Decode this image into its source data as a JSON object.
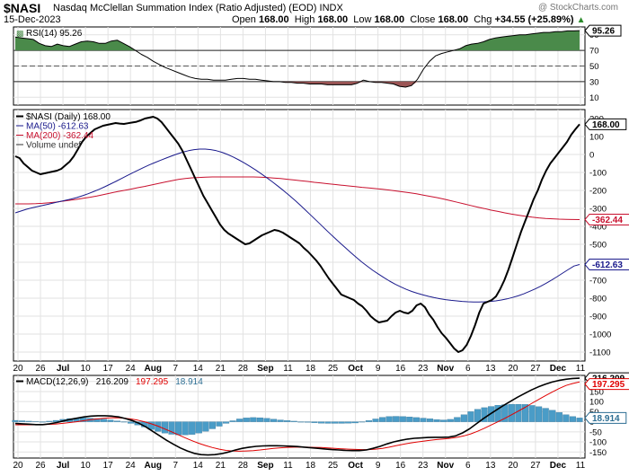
{
  "header": {
    "symbol": "$NASI",
    "title": "Nasdaq McClellan Summation Index (Ratio Adjusted) (EOD)",
    "exchange": "INDX",
    "watermark": "@ StockCharts.com",
    "date": "15-Dec-2023",
    "open_label": "Open",
    "open": "168.00",
    "high_label": "High",
    "high": "168.00",
    "low_label": "Low",
    "low": "168.00",
    "close_label": "Close",
    "close": "168.00",
    "chg_label": "Chg",
    "chg": "+34.55 (+25.89%)",
    "chg_arrow": "▲"
  },
  "colors": {
    "price": "#000000",
    "ma50": "#1a1a8c",
    "ma200": "#c8102e",
    "signal": "#e00000",
    "hist": "#4a9cc7",
    "rsi_up": "#4a8a4a",
    "rsi_down": "#9b5555",
    "tag_ma50": "#1a1a8c",
    "tag_ma200": "#c8102e"
  },
  "chart_data": [
    {
      "type": "line",
      "panel": "rsi",
      "legend": [
        "RSI(14) 95.26"
      ],
      "last_value_tag": "95.26",
      "ylim": [
        0,
        100
      ],
      "ticks": [
        10,
        30,
        50,
        70,
        90
      ],
      "levels": [
        30,
        50,
        70
      ],
      "x_labels": [
        "20",
        "26",
        "Jul",
        "10",
        "17",
        "24",
        "Aug",
        "7",
        "14",
        "21",
        "28",
        "Sep",
        "11",
        "18",
        "25",
        "Oct",
        "9",
        "16",
        "23",
        "Nov",
        "6",
        "13",
        "20",
        "27",
        "Dec",
        "11"
      ],
      "series": [
        {
          "name": "RSI(14)",
          "values": [
            87,
            86,
            85,
            84,
            79,
            76,
            75,
            78,
            76,
            75,
            78,
            81,
            82,
            81,
            79,
            79,
            82,
            83,
            79,
            75,
            70,
            65,
            61,
            56,
            52,
            48,
            45,
            42,
            39,
            36,
            34,
            33,
            33,
            32,
            32,
            32,
            33,
            34,
            34,
            33,
            33,
            32,
            31,
            30,
            30,
            29,
            29,
            28,
            28,
            27,
            27,
            27,
            26,
            26,
            26,
            26,
            26,
            28,
            32,
            30,
            29,
            29,
            28,
            27,
            24,
            23,
            25,
            33,
            46,
            56,
            63,
            66,
            68,
            70,
            72,
            76,
            78,
            79,
            81,
            84,
            86,
            87,
            88,
            89,
            90,
            90,
            91,
            92,
            93,
            93,
            94,
            94,
            95,
            95,
            95.26
          ]
        }
      ]
    },
    {
      "type": "line",
      "panel": "price",
      "legend": [
        "$NASI (Daily) 168.00",
        "MA(50) -612.63",
        "MA(200) -362.44",
        "Volume undef"
      ],
      "ylim": [
        -1150,
        250
      ],
      "ticks": [
        200,
        100,
        0,
        -100,
        -200,
        -300,
        -400,
        -500,
        -600,
        -700,
        -800,
        -900,
        -1000,
        -1100
      ],
      "x_labels": [
        "20",
        "26",
        "Jul",
        "10",
        "17",
        "24",
        "Aug",
        "7",
        "14",
        "21",
        "28",
        "Sep",
        "11",
        "18",
        "25",
        "Oct",
        "9",
        "16",
        "23",
        "Nov",
        "6",
        "13",
        "20",
        "27",
        "Dec",
        "11"
      ],
      "value_tags": [
        "168.00",
        "-362.44",
        "-612.63"
      ],
      "series": [
        {
          "name": "$NASI",
          "values": [
            -10,
            -20,
            -50,
            -70,
            -90,
            -100,
            -110,
            -105,
            -100,
            -95,
            -90,
            -80,
            -60,
            -40,
            -10,
            30,
            70,
            100,
            120,
            140,
            150,
            160,
            165,
            170,
            175,
            172,
            170,
            174,
            178,
            182,
            190,
            200,
            205,
            210,
            200,
            180,
            150,
            120,
            90,
            60,
            20,
            -30,
            -80,
            -130,
            -180,
            -230,
            -270,
            -310,
            -350,
            -390,
            -420,
            -440,
            -455,
            -470,
            -485,
            -500,
            -495,
            -480,
            -465,
            -450,
            -440,
            -430,
            -420,
            -425,
            -435,
            -450,
            -465,
            -480,
            -495,
            -520,
            -540,
            -565,
            -590,
            -620,
            -655,
            -690,
            -720,
            -750,
            -780,
            -790,
            -800,
            -810,
            -830,
            -845,
            -870,
            -900,
            -920,
            -935,
            -930,
            -925,
            -900,
            -880,
            -870,
            -880,
            -885,
            -870,
            -840,
            -830,
            -850,
            -890,
            -920,
            -960,
            -995,
            -1020,
            -1050,
            -1080,
            -1100,
            -1090,
            -1060,
            -1010,
            -950,
            -880,
            -830,
            -820,
            -810,
            -790,
            -750,
            -700,
            -640,
            -570,
            -500,
            -430,
            -370,
            -310,
            -250,
            -200,
            -140,
            -90,
            -50,
            -20,
            10,
            40,
            70,
            110,
            140,
            168
          ]
        },
        {
          "name": "MA(50)",
          "values": [
            -325,
            -315,
            -305,
            -297,
            -290,
            -283,
            -276,
            -269,
            -262,
            -255,
            -248,
            -240,
            -230,
            -219,
            -207,
            -194,
            -180,
            -165,
            -150,
            -134,
            -118,
            -102,
            -87,
            -72,
            -58,
            -45,
            -32,
            -20,
            -8,
            3,
            13,
            21,
            27,
            30,
            30,
            27,
            21,
            12,
            0,
            -14,
            -30,
            -47,
            -66,
            -86,
            -107,
            -129,
            -152,
            -176,
            -201,
            -227,
            -254,
            -282,
            -311,
            -341,
            -371,
            -401,
            -431,
            -460,
            -489,
            -517,
            -545,
            -572,
            -598,
            -622,
            -645,
            -666,
            -686,
            -705,
            -722,
            -737,
            -751,
            -763,
            -773,
            -782,
            -790,
            -797,
            -803,
            -808,
            -812,
            -815,
            -818,
            -820,
            -821,
            -821,
            -820,
            -818,
            -815,
            -810,
            -804,
            -796,
            -787,
            -776,
            -763,
            -749,
            -734,
            -717,
            -699,
            -680,
            -660,
            -640,
            -621,
            -612.63
          ]
        },
        {
          "name": "MA(200)",
          "values": [
            -275,
            -275,
            -275,
            -274,
            -272,
            -269,
            -265,
            -260,
            -255,
            -250,
            -244,
            -238,
            -231,
            -223,
            -215,
            -207,
            -200,
            -193,
            -185,
            -178,
            -170,
            -162,
            -154,
            -146,
            -139,
            -134,
            -130,
            -128,
            -126,
            -125,
            -125,
            -125,
            -125,
            -125,
            -125,
            -125,
            -126,
            -128,
            -131,
            -134,
            -138,
            -142,
            -146,
            -150,
            -155,
            -159,
            -163,
            -167,
            -171,
            -175,
            -179,
            -183,
            -186,
            -190,
            -194,
            -198,
            -203,
            -208,
            -213,
            -219,
            -226,
            -233,
            -240,
            -248,
            -257,
            -266,
            -275,
            -284,
            -293,
            -301,
            -310,
            -317,
            -325,
            -332,
            -338,
            -344,
            -349,
            -353,
            -356,
            -358,
            -360,
            -361,
            -362,
            -362.44
          ]
        }
      ]
    },
    {
      "type": "line",
      "panel": "macd",
      "legend": [
        "MACD(12,26,9)",
        "216.209",
        "197.295",
        "18.914"
      ],
      "ylim": [
        -180,
        230
      ],
      "ticks": [
        200,
        150,
        100,
        50,
        0,
        -50,
        -100,
        -150
      ],
      "value_tags": [
        "216.209",
        "197.295",
        "18.914"
      ],
      "x_labels": [
        "20",
        "26",
        "Jul",
        "10",
        "17",
        "24",
        "Aug",
        "7",
        "14",
        "21",
        "28",
        "Sep",
        "11",
        "18",
        "25",
        "Oct",
        "9",
        "16",
        "23",
        "Nov",
        "6",
        "13",
        "20",
        "27",
        "Dec",
        "11"
      ],
      "series": [
        {
          "name": "MACD",
          "values": [
            -8,
            -10,
            -12,
            -14,
            -14,
            -10,
            -4,
            4,
            12,
            18,
            24,
            28,
            30,
            30,
            28,
            24,
            16,
            6,
            -8,
            -26,
            -48,
            -70,
            -92,
            -112,
            -130,
            -145,
            -157,
            -163,
            -165,
            -163,
            -158,
            -150,
            -140,
            -132,
            -126,
            -122,
            -120,
            -119,
            -119,
            -120,
            -121,
            -123,
            -126,
            -129,
            -132,
            -135,
            -138,
            -140,
            -142,
            -143,
            -143,
            -140,
            -132,
            -122,
            -110,
            -100,
            -92,
            -86,
            -82,
            -80,
            -78,
            -77,
            -77,
            -76,
            -70,
            -55,
            -35,
            -10,
            15,
            38,
            60,
            82,
            102,
            122,
            140,
            158,
            173,
            186,
            197,
            205,
            211,
            215,
            216.209
          ]
        },
        {
          "name": "Signal",
          "values": [
            -15,
            -15,
            -15,
            -15,
            -14,
            -13,
            -11,
            -8,
            -4,
            0,
            5,
            10,
            14,
            17,
            19,
            20,
            18,
            14,
            8,
            0,
            -10,
            -22,
            -36,
            -50,
            -65,
            -80,
            -94,
            -107,
            -118,
            -128,
            -136,
            -142,
            -145,
            -146,
            -145,
            -143,
            -140,
            -136,
            -132,
            -129,
            -127,
            -126,
            -126,
            -126,
            -127,
            -128,
            -130,
            -132,
            -134,
            -136,
            -137,
            -138,
            -138,
            -136,
            -132,
            -126,
            -119,
            -112,
            -106,
            -101,
            -96,
            -92,
            -88,
            -85,
            -82,
            -77,
            -70,
            -60,
            -47,
            -32,
            -16,
            0,
            17,
            35,
            53,
            72,
            92,
            111,
            130,
            148,
            165,
            180,
            190,
            197.295
          ]
        },
        {
          "name": "Histogram",
          "values": [
            7,
            5,
            3,
            1,
            0,
            3,
            7,
            12,
            16,
            18,
            19,
            18,
            16,
            13,
            9,
            4,
            -2,
            -8,
            -16,
            -26,
            -38,
            -48,
            -56,
            -62,
            -65,
            -65,
            -63,
            -56,
            -47,
            -35,
            -22,
            -8,
            5,
            14,
            19,
            21,
            20,
            17,
            13,
            9,
            6,
            3,
            0,
            -3,
            -5,
            -7,
            -8,
            -8,
            -8,
            -7,
            -6,
            -2,
            6,
            14,
            22,
            26,
            27,
            26,
            24,
            21,
            18,
            15,
            11,
            9,
            12,
            22,
            35,
            50,
            62,
            70,
            76,
            82,
            85,
            87,
            87,
            86,
            81,
            75,
            67,
            57,
            46,
            35,
            26,
            18.914
          ]
        }
      ]
    }
  ]
}
